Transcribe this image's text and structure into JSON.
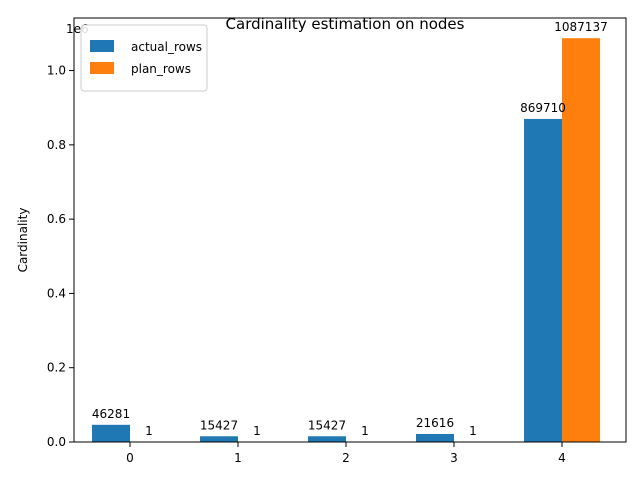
{
  "chart_data": {
    "type": "bar",
    "title": "Cardinality estimation on nodes",
    "xlabel": "",
    "ylabel": "Cardinality",
    "y_scale_note": "1e6",
    "categories": [
      "0",
      "1",
      "2",
      "3",
      "4"
    ],
    "series": [
      {
        "name": "actual_rows",
        "color": "#1f77b4",
        "values": [
          46281,
          15427,
          15427,
          21616,
          869710
        ]
      },
      {
        "name": "plan_rows",
        "color": "#ff7f0e",
        "values": [
          1,
          1,
          1,
          1,
          1087137
        ]
      }
    ],
    "ylim": [
      0,
      1141494
    ],
    "yticks": [
      0,
      200000,
      400000,
      600000,
      800000,
      1000000
    ],
    "ytick_labels": [
      "0.0",
      "0.2",
      "0.4",
      "0.6",
      "0.8",
      "1.0"
    ],
    "legend_position": "top-left",
    "grid": false
  }
}
